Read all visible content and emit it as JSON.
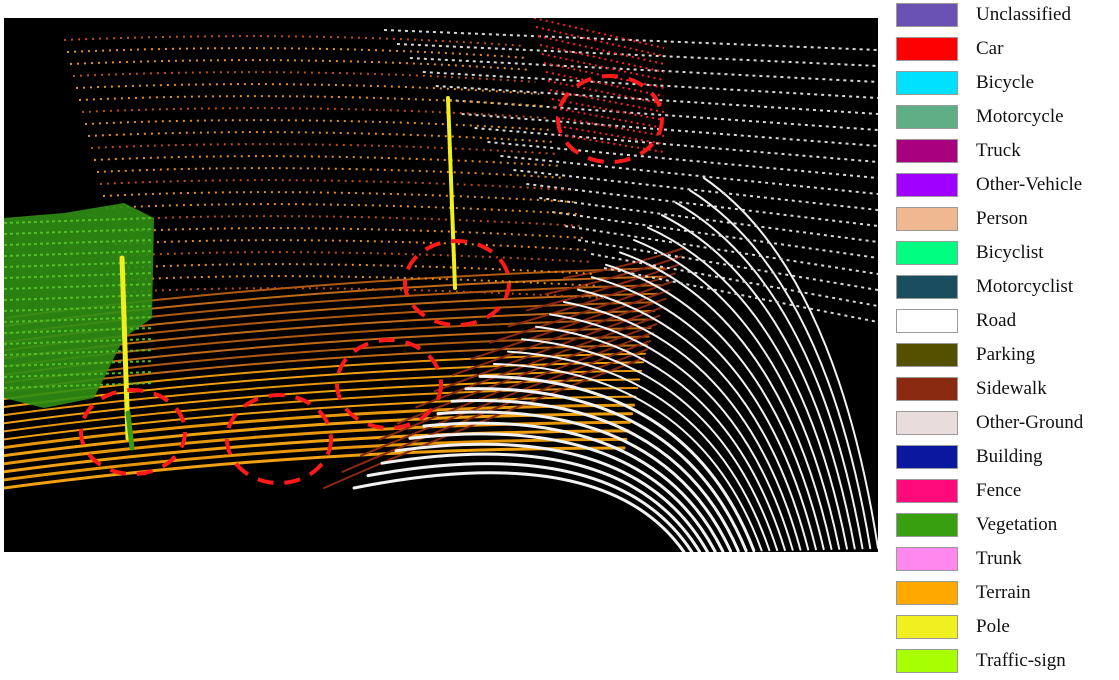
{
  "legend": {
    "items": [
      {
        "label": "Unclassified",
        "color": "#6a52b4"
      },
      {
        "label": "Car",
        "color": "#ff0000"
      },
      {
        "label": "Bicycle",
        "color": "#00e0ff"
      },
      {
        "label": "Motorcycle",
        "color": "#5fae85"
      },
      {
        "label": "Truck",
        "color": "#a8007e"
      },
      {
        "label": "Other-Vehicle",
        "color": "#a000ff"
      },
      {
        "label": "Person",
        "color": "#f0b890"
      },
      {
        "label": "Bicyclist",
        "color": "#00ff80"
      },
      {
        "label": "Motorcyclist",
        "color": "#1a4e5e"
      },
      {
        "label": "Road",
        "color": "#ffffff"
      },
      {
        "label": "Parking",
        "color": "#545000"
      },
      {
        "label": "Sidewalk",
        "color": "#8a2a10"
      },
      {
        "label": "Other-Ground",
        "color": "#e8dcdc"
      },
      {
        "label": "Building",
        "color": "#0a18a0"
      },
      {
        "label": "Fence",
        "color": "#ff0a7a"
      },
      {
        "label": "Vegetation",
        "color": "#38a010"
      },
      {
        "label": "Trunk",
        "color": "#ff88ee"
      },
      {
        "label": "Terrain",
        "color": "#ffa800"
      },
      {
        "label": "Pole",
        "color": "#f0f020"
      },
      {
        "label": "Traffic-sign",
        "color": "#a8ff00"
      }
    ]
  },
  "scene": {
    "background": "#000000",
    "highlight_color": "#ff1a1a"
  }
}
